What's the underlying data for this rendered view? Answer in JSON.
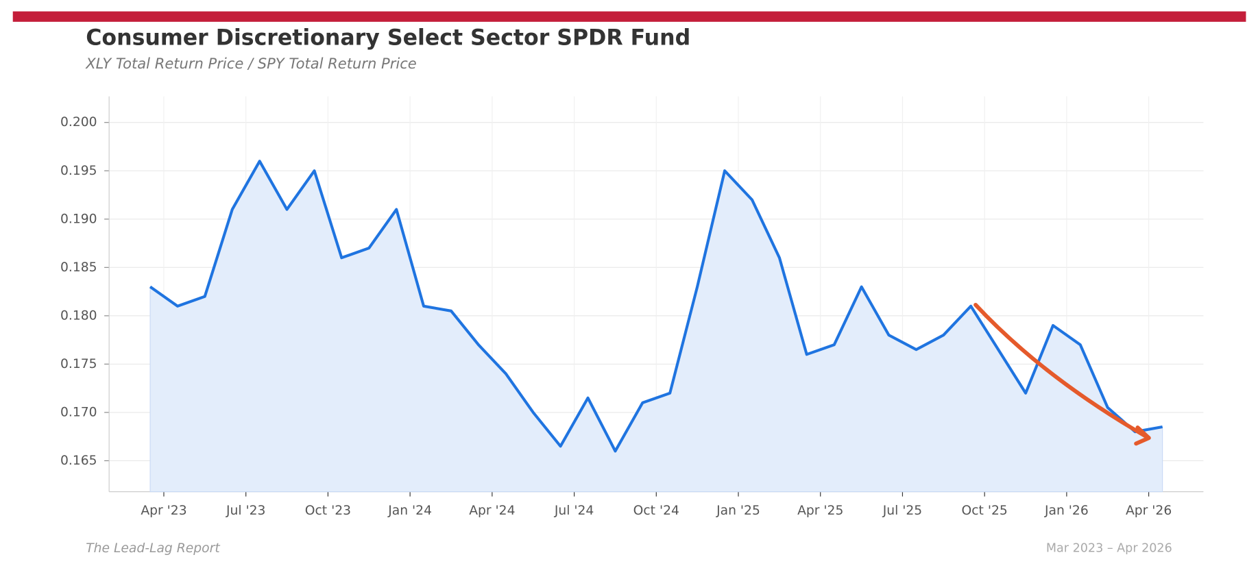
{
  "chart_data": {
    "type": "line",
    "title": "Consumer Discretionary Select Sector SPDR Fund",
    "subtitle": "XLY Total Return Price / SPY Total Return Price",
    "source": "The Lead-Lag Report",
    "date_range": "Mar 2023 – Apr 2026",
    "x": [
      "2023-03",
      "2023-04",
      "2023-05",
      "2023-06",
      "2023-07",
      "2023-08",
      "2023-09",
      "2023-10",
      "2023-11",
      "2023-12",
      "2024-01",
      "2024-02",
      "2024-03",
      "2024-04",
      "2024-05",
      "2024-06",
      "2024-07",
      "2024-08",
      "2024-09",
      "2024-10",
      "2024-11",
      "2024-12",
      "2025-01",
      "2025-02",
      "2025-03",
      "2025-04",
      "2025-05",
      "2025-06",
      "2025-07",
      "2025-08",
      "2025-09",
      "2025-10",
      "2025-11",
      "2025-12",
      "2026-01",
      "2026-02",
      "2026-03",
      "2026-04"
    ],
    "series": [
      {
        "name": "XLY / SPY",
        "color": "#1f74e0",
        "fill": "#e3edfb",
        "values": [
          0.183,
          0.181,
          0.182,
          0.191,
          0.196,
          0.191,
          0.195,
          0.186,
          0.187,
          0.191,
          0.181,
          0.1805,
          0.177,
          0.174,
          0.17,
          0.1665,
          0.1715,
          0.166,
          0.171,
          0.172,
          0.183,
          0.195,
          0.192,
          0.186,
          0.176,
          0.177,
          0.183,
          0.178,
          0.1765,
          0.178,
          0.181,
          0.1765,
          0.172,
          0.179,
          0.177,
          0.1705,
          0.168,
          0.1685
        ]
      }
    ],
    "xlim": [
      "2023-02",
      "2026-06"
    ],
    "xticks": [
      {
        "value": "2023-04",
        "label": "Apr '23"
      },
      {
        "value": "2023-07",
        "label": "Jul '23"
      },
      {
        "value": "2023-10",
        "label": "Oct '23"
      },
      {
        "value": "2024-01",
        "label": "Jan '24"
      },
      {
        "value": "2024-04",
        "label": "Apr '24"
      },
      {
        "value": "2024-07",
        "label": "Jul '24"
      },
      {
        "value": "2024-10",
        "label": "Oct '24"
      },
      {
        "value": "2025-01",
        "label": "Jan '25"
      },
      {
        "value": "2025-04",
        "label": "Apr '25"
      },
      {
        "value": "2025-07",
        "label": "Jul '25"
      },
      {
        "value": "2025-10",
        "label": "Oct '25"
      },
      {
        "value": "2026-01",
        "label": "Jan '26"
      },
      {
        "value": "2026-04",
        "label": "Apr '26"
      }
    ],
    "ylim": [
      0.1618,
      0.2027
    ],
    "yticks": [
      0.165,
      {
        "value": 0.17,
        "label": "0.170"
      },
      0.175,
      {
        "value": 0.18,
        "label": "0.180"
      },
      0.185,
      {
        "value": 0.19,
        "label": "0.190"
      },
      0.195,
      {
        "value": 0.2,
        "label": "0.200"
      }
    ],
    "grid": true
  }
}
